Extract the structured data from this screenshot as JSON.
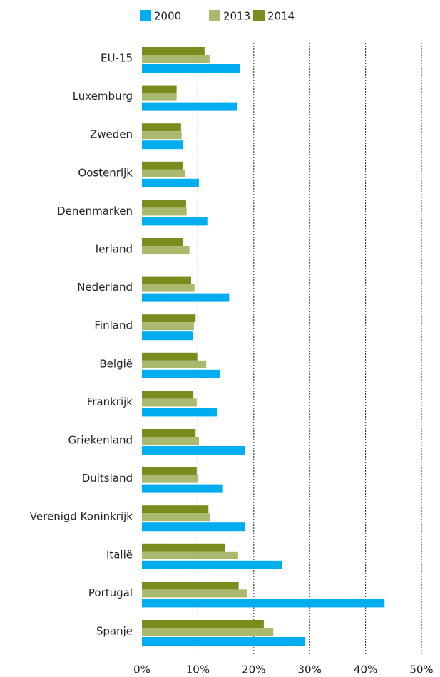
{
  "chart_data": {
    "type": "hbar",
    "categories": [
      "EU-15",
      "Luxemburg",
      "Zweden",
      "Oostenrijk",
      "Denenmarken",
      "Ierland",
      "Nederland",
      "Finland",
      "België",
      "Frankrijk",
      "Griekenland",
      "Duitsland",
      "Verenigd Koninkrijk",
      "Italië",
      "Portugal",
      "Spanje"
    ],
    "series": [
      {
        "name": "2000",
        "color": "#00aeef",
        "values": [
          17.6,
          17.0,
          7.4,
          10.2,
          11.7,
          null,
          15.6,
          9.1,
          13.9,
          13.4,
          18.4,
          14.5,
          18.4,
          25.0,
          43.4,
          29.1
        ]
      },
      {
        "name": "2013",
        "color": "#a9b96e",
        "values": [
          12.1,
          6.2,
          7.1,
          7.7,
          8.0,
          8.5,
          9.4,
          9.3,
          11.5,
          9.8,
          10.2,
          10.1,
          12.2,
          17.2,
          18.8,
          23.5
        ]
      },
      {
        "name": "2014",
        "color": "#7a8c1e",
        "values": [
          11.2,
          6.2,
          7.0,
          7.3,
          7.9,
          7.4,
          8.8,
          9.6,
          9.9,
          9.2,
          9.6,
          9.8,
          11.9,
          14.9,
          17.3,
          21.8
        ]
      }
    ],
    "xlim": [
      0,
      50
    ],
    "xticks": [
      {
        "value": 0,
        "label": "0%"
      },
      {
        "value": 10,
        "label": "10%"
      },
      {
        "value": 20,
        "label": "20%"
      },
      {
        "value": 30,
        "label": "30%"
      },
      {
        "value": 40,
        "label": "40%"
      },
      {
        "value": 50,
        "label": "50%"
      }
    ],
    "grid": true
  }
}
